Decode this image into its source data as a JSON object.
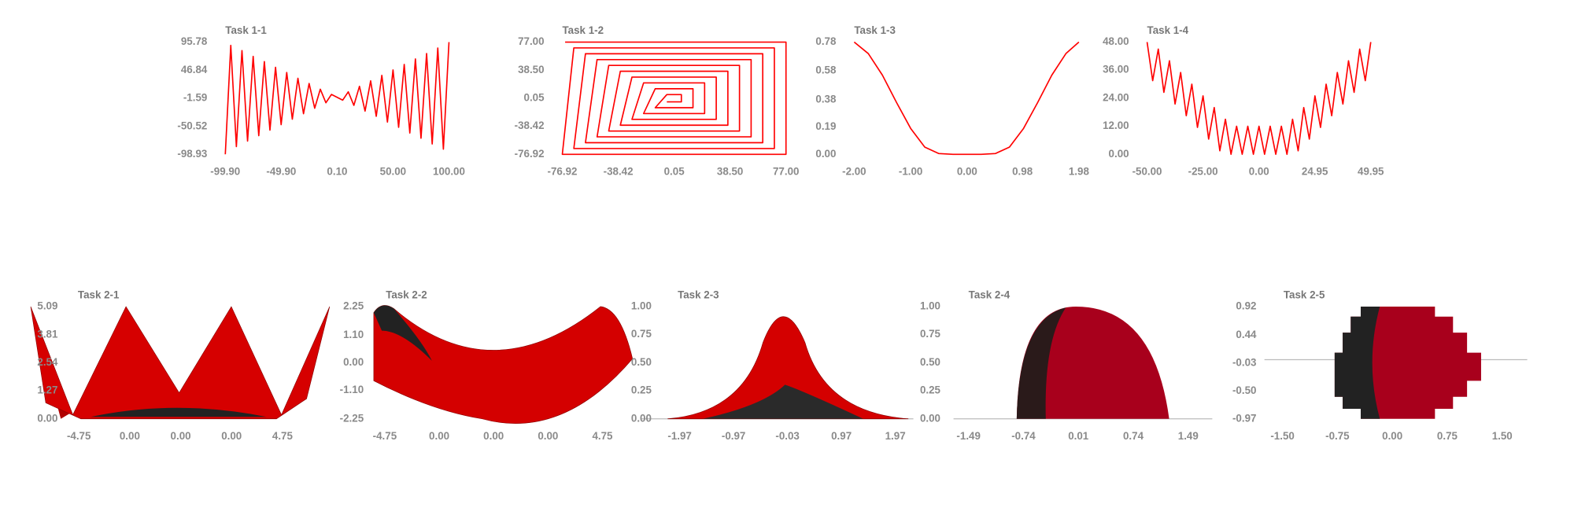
{
  "chart_data": [
    {
      "type": "line",
      "title": "Task 1-1",
      "color": "#ff0000",
      "x": [
        -99.9,
        -95,
        -90,
        -85,
        -80,
        -75,
        -70,
        -65,
        -60,
        -55,
        -50,
        -45,
        -40,
        -35,
        -30,
        -25,
        -20,
        -15,
        -10,
        -5,
        0,
        5,
        10,
        15,
        20,
        25,
        30,
        35,
        40,
        45,
        50,
        55,
        60,
        65,
        70,
        75,
        80,
        85,
        90,
        95,
        100
      ],
      "values": [
        -98.9,
        90,
        -85.5,
        81,
        -76,
        71,
        -66.5,
        62,
        -57,
        52,
        -47.5,
        43,
        -38,
        33,
        -28.5,
        24,
        -19,
        14,
        -9.5,
        5,
        0,
        -5,
        9.5,
        -14,
        19,
        -24,
        28.5,
        -33,
        38,
        -43,
        47.5,
        -52,
        57,
        -62,
        66.5,
        -71,
        76,
        -81,
        85.5,
        -90,
        95.7
      ],
      "xlim": [
        -99.9,
        100
      ],
      "ylim": [
        -98.93,
        95.78
      ],
      "xticks": [
        {
          "value": -99.9,
          "label": "-99.90"
        },
        {
          "value": -49.9,
          "label": "-49.90"
        },
        {
          "value": 0.1,
          "label": "0.10"
        },
        {
          "value": 50,
          "label": "50.00"
        },
        {
          "value": 100,
          "label": "100.00"
        }
      ],
      "yticks": [
        95.78,
        46.84,
        -1.59,
        -50.52,
        -98.93
      ]
    },
    {
      "type": "line",
      "title": "Task 1-2",
      "color": "#ff0000",
      "x": [
        -75,
        77,
        77,
        -76.92,
        -69,
        69,
        69,
        -69,
        -61,
        61,
        61,
        -61,
        -53,
        53,
        53,
        -53,
        -45,
        45,
        45,
        -45,
        -37,
        37,
        37,
        -37,
        -29,
        29,
        29,
        -29,
        -21,
        21,
        21,
        -21,
        -13,
        13,
        13,
        -13,
        -5,
        5,
        5,
        -5
      ],
      "values": [
        77,
        77,
        -76.92,
        -76.92,
        69,
        69,
        -69,
        -69,
        61,
        61,
        -61,
        -61,
        53,
        53,
        -53,
        -53,
        45,
        45,
        -45,
        -45,
        37,
        37,
        -37,
        -37,
        29,
        29,
        -29,
        -29,
        21,
        21,
        -21,
        -21,
        13,
        13,
        -13,
        -13,
        5,
        5,
        -5,
        -5
      ],
      "xlim": [
        -76.92,
        77
      ],
      "ylim": [
        -76.92,
        77
      ],
      "xticks": [
        -76.92,
        -38.42,
        0.05,
        {
          "value": 38.5,
          "label": "38.50"
        },
        {
          "value": 77,
          "label": "77.00"
        }
      ],
      "yticks": [
        {
          "value": 77,
          "label": "77.00"
        },
        {
          "value": 38.5,
          "label": "38.50"
        },
        0.05,
        -38.42,
        -76.92
      ]
    },
    {
      "type": "line",
      "title": "Task 1-3",
      "color": "#ff0000",
      "x": [
        -2,
        -1.75,
        -1.5,
        -1.25,
        -1,
        -0.75,
        -0.5,
        -0.25,
        0,
        0.25,
        0.5,
        0.75,
        1,
        1.25,
        1.5,
        1.75,
        1.98
      ],
      "values": [
        0.78,
        0.7,
        0.55,
        0.36,
        0.18,
        0.05,
        0.005,
        0,
        0,
        0,
        0.005,
        0.05,
        0.18,
        0.36,
        0.55,
        0.7,
        0.78
      ],
      "xlim": [
        -2,
        1.98
      ],
      "ylim": [
        0,
        0.78
      ],
      "xticks": [
        {
          "value": -2,
          "label": "-2.00"
        },
        {
          "value": -1,
          "label": "-1.00"
        },
        {
          "value": 0,
          "label": "0.00"
        },
        0.98,
        1.98
      ],
      "yticks": [
        0.78,
        0.58,
        0.38,
        0.19,
        {
          "value": 0,
          "label": "0.00"
        }
      ]
    },
    {
      "type": "line",
      "title": "Task 1-4",
      "color": "#ff0000",
      "x": [
        -50,
        -47.5,
        -45,
        -42.5,
        -40,
        -37.5,
        -35,
        -32.5,
        -30,
        -27.5,
        -25,
        -22.5,
        -20,
        -17.5,
        -15,
        -12.5,
        -10,
        -7.5,
        -5,
        -2.5,
        0,
        2.5,
        5,
        7.5,
        10,
        12.5,
        15,
        17.5,
        20,
        22.5,
        25,
        27.5,
        30,
        32.5,
        35,
        37.5,
        40,
        42.5,
        45,
        47.5,
        49.95
      ],
      "values": [
        48,
        31.5,
        45,
        26.5,
        40,
        21.5,
        35,
        16.5,
        30,
        11.5,
        25,
        6.5,
        20,
        1.5,
        15,
        0,
        12,
        0,
        12,
        0,
        12,
        0,
        12,
        0,
        12,
        0,
        15,
        1.5,
        20,
        6.5,
        25,
        11.5,
        30,
        16.5,
        35,
        21.5,
        40,
        26.5,
        45,
        31.5,
        48
      ],
      "xlim": [
        -50,
        49.95
      ],
      "ylim": [
        0,
        48
      ],
      "xticks": [
        {
          "value": -50,
          "label": "-50.00"
        },
        {
          "value": -25,
          "label": "-25.00"
        },
        {
          "value": 0,
          "label": "0.00"
        },
        24.95,
        49.95
      ],
      "yticks": [
        {
          "value": 48,
          "label": "48.00"
        },
        {
          "value": 36,
          "label": "36.00"
        },
        {
          "value": 24,
          "label": "24.00"
        },
        {
          "value": 12,
          "label": "12.00"
        },
        {
          "value": 0,
          "label": "0.00"
        }
      ]
    },
    {
      "type": "surface",
      "title": "Task 2-1",
      "ylim": [
        0,
        5.09
      ],
      "xticks": [
        -4.75,
        {
          "value": 0,
          "label": "0.00"
        },
        {
          "value": 0,
          "label": "0.00"
        },
        {
          "value": 0,
          "label": "0.00"
        },
        4.75
      ],
      "yticks": [
        5.09,
        3.81,
        2.54,
        1.27,
        {
          "value": 0,
          "label": "0.00"
        }
      ]
    },
    {
      "type": "surface",
      "title": "Task 2-2",
      "ylim": [
        -2.25,
        2.25
      ],
      "xticks": [
        -4.75,
        {
          "value": 0,
          "label": "0.00"
        },
        {
          "value": 0,
          "label": "0.00"
        },
        {
          "value": 0,
          "label": "0.00"
        },
        4.75
      ],
      "yticks": [
        2.25,
        {
          "value": 1.1,
          "label": "1.10"
        },
        {
          "value": 0,
          "label": "0.00"
        },
        {
          "value": -1.1,
          "label": "-1.10"
        },
        -2.25
      ]
    },
    {
      "type": "surface",
      "title": "Task 2-3",
      "ylim": [
        0,
        1
      ],
      "xticks": [
        -1.97,
        -0.97,
        -0.03,
        0.97,
        1.97
      ],
      "yticks": [
        {
          "value": 1,
          "label": "1.00"
        },
        0.75,
        {
          "value": 0.5,
          "label": "0.50"
        },
        0.25,
        {
          "value": 0,
          "label": "0.00"
        }
      ]
    },
    {
      "type": "surface",
      "title": "Task 2-4",
      "ylim": [
        0,
        1
      ],
      "xticks": [
        -1.49,
        -0.74,
        0.01,
        0.74,
        1.49
      ],
      "yticks": [
        {
          "value": 1,
          "label": "1.00"
        },
        0.75,
        {
          "value": 0.5,
          "label": "0.50"
        },
        0.25,
        {
          "value": 0,
          "label": "0.00"
        }
      ]
    },
    {
      "type": "surface",
      "title": "Task 2-5",
      "ylim": [
        -0.97,
        0.92
      ],
      "xticks": [
        {
          "value": -1.5,
          "label": "-1.50"
        },
        -0.75,
        {
          "value": 0,
          "label": "0.00"
        },
        0.75,
        {
          "value": 1.5,
          "label": "1.50"
        }
      ],
      "yticks": [
        0.92,
        0.44,
        -0.03,
        {
          "value": -0.5,
          "label": "-0.50"
        },
        -0.97
      ]
    }
  ]
}
